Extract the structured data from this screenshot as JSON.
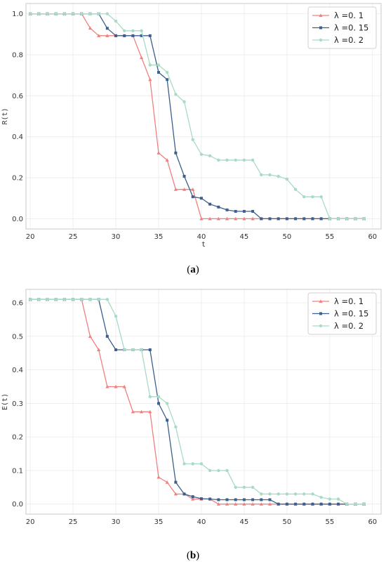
{
  "chart_data": [
    {
      "type": "line",
      "caption": "a",
      "xlabel": "t",
      "ylabel": "R(t)",
      "xlim": [
        19.5,
        61
      ],
      "ylim": [
        -0.05,
        1.05
      ],
      "xticks": [
        20,
        25,
        30,
        35,
        40,
        45,
        50,
        55,
        60
      ],
      "yticks": [
        0.0,
        0.2,
        0.4,
        0.6,
        0.8,
        1.0
      ],
      "ytick_labels": [
        "0.0",
        "0.2",
        "0.4",
        "0.6",
        "0.8",
        "1.0"
      ],
      "grid": true,
      "legend_position": "top-right",
      "x": [
        20,
        21,
        22,
        23,
        24,
        25,
        26,
        27,
        28,
        29,
        30,
        31,
        32,
        33,
        34,
        35,
        36,
        37,
        38,
        39,
        40,
        41,
        42,
        43,
        44,
        45,
        46,
        47,
        48,
        49,
        50,
        51,
        52,
        53,
        54,
        55,
        56,
        57,
        58,
        59
      ],
      "series": [
        {
          "name": "λ =0. 1",
          "color": "#f08080",
          "marker": "triangle",
          "values": [
            1.0,
            1.0,
            1.0,
            1.0,
            1.0,
            1.0,
            1.0,
            0.93,
            0.893,
            0.893,
            0.893,
            0.893,
            0.893,
            0.786,
            0.679,
            0.321,
            0.286,
            0.143,
            0.143,
            0.143,
            0.0,
            0.0,
            0.0,
            0.0,
            0.0,
            0.0,
            0.0,
            0.0,
            0.0,
            0.0,
            0.0,
            0.0,
            0.0,
            0.0,
            0.0,
            0.0,
            0.0,
            0.0,
            0.0,
            0.0
          ]
        },
        {
          "name": "λ =0. 15",
          "color": "#3d5f8c",
          "marker": "square",
          "values": [
            1.0,
            1.0,
            1.0,
            1.0,
            1.0,
            1.0,
            1.0,
            1.0,
            1.0,
            0.929,
            0.893,
            0.893,
            0.893,
            0.893,
            0.893,
            0.714,
            0.679,
            0.321,
            0.207,
            0.107,
            0.1,
            0.071,
            0.057,
            0.043,
            0.036,
            0.036,
            0.036,
            0.0,
            0.0,
            0.0,
            0.0,
            0.0,
            0.0,
            0.0,
            0.0,
            0.0,
            0.0,
            0.0,
            0.0,
            0.0
          ]
        },
        {
          "name": "λ =0. 2",
          "color": "#a8dbc5",
          "marker": "circle",
          "values": [
            1.0,
            1.0,
            1.0,
            1.0,
            1.0,
            1.0,
            1.0,
            1.0,
            1.0,
            1.0,
            0.964,
            0.917,
            0.917,
            0.917,
            0.75,
            0.75,
            0.714,
            0.607,
            0.571,
            0.386,
            0.314,
            0.307,
            0.286,
            0.286,
            0.286,
            0.286,
            0.286,
            0.214,
            0.214,
            0.207,
            0.193,
            0.143,
            0.107,
            0.107,
            0.107,
            0.0,
            0.0,
            0.0,
            0.0,
            0.0
          ]
        }
      ]
    },
    {
      "type": "line",
      "caption": "b",
      "xlabel": "",
      "ylabel": "E(t)",
      "xlim": [
        19.5,
        61
      ],
      "ylim": [
        -0.03,
        0.64
      ],
      "xticks": [
        20,
        25,
        30,
        35,
        40,
        45,
        50,
        55,
        60
      ],
      "yticks": [
        0.0,
        0.1,
        0.2,
        0.3,
        0.4,
        0.5,
        0.6
      ],
      "ytick_labels": [
        "0.0",
        "0.1",
        "0.2",
        "0.3",
        "0.4",
        "0.5",
        "0.6"
      ],
      "grid": true,
      "legend_position": "top-right",
      "x": [
        20,
        21,
        22,
        23,
        24,
        25,
        26,
        27,
        28,
        29,
        30,
        31,
        32,
        33,
        34,
        35,
        36,
        37,
        38,
        39,
        40,
        41,
        42,
        43,
        44,
        45,
        46,
        47,
        48,
        49,
        50,
        51,
        52,
        53,
        54,
        55,
        56,
        57,
        58,
        59
      ],
      "series": [
        {
          "name": "λ =0. 1",
          "color": "#f08080",
          "marker": "triangle",
          "values": [
            0.61,
            0.61,
            0.61,
            0.61,
            0.61,
            0.61,
            0.61,
            0.5,
            0.46,
            0.35,
            0.35,
            0.35,
            0.275,
            0.275,
            0.275,
            0.08,
            0.065,
            0.03,
            0.03,
            0.015,
            0.015,
            0.015,
            0.0,
            0.0,
            0.0,
            0.0,
            0.0,
            0.0,
            0.0,
            0.0,
            0.0,
            0.0,
            0.0,
            0.0,
            0.0,
            0.0,
            0.0,
            0.0,
            0.0,
            0.0
          ]
        },
        {
          "name": "λ =0. 15",
          "color": "#3d5f8c",
          "marker": "square",
          "values": [
            0.61,
            0.61,
            0.61,
            0.61,
            0.61,
            0.61,
            0.61,
            0.61,
            0.61,
            0.5,
            0.46,
            0.46,
            0.46,
            0.46,
            0.46,
            0.3,
            0.25,
            0.065,
            0.03,
            0.022,
            0.016,
            0.015,
            0.013,
            0.013,
            0.013,
            0.013,
            0.013,
            0.013,
            0.013,
            0.0,
            0.0,
            0.0,
            0.0,
            0.0,
            0.0,
            0.0,
            0.0,
            0.0,
            0.0,
            0.0
          ]
        },
        {
          "name": "λ =0. 2",
          "color": "#a8dbc5",
          "marker": "circle",
          "values": [
            0.61,
            0.61,
            0.61,
            0.61,
            0.61,
            0.61,
            0.61,
            0.61,
            0.61,
            0.61,
            0.56,
            0.46,
            0.46,
            0.46,
            0.32,
            0.32,
            0.3,
            0.23,
            0.12,
            0.12,
            0.12,
            0.1,
            0.1,
            0.1,
            0.05,
            0.05,
            0.05,
            0.03,
            0.03,
            0.03,
            0.03,
            0.03,
            0.03,
            0.03,
            0.02,
            0.015,
            0.015,
            0.0,
            0.0,
            0.0
          ]
        }
      ]
    }
  ]
}
